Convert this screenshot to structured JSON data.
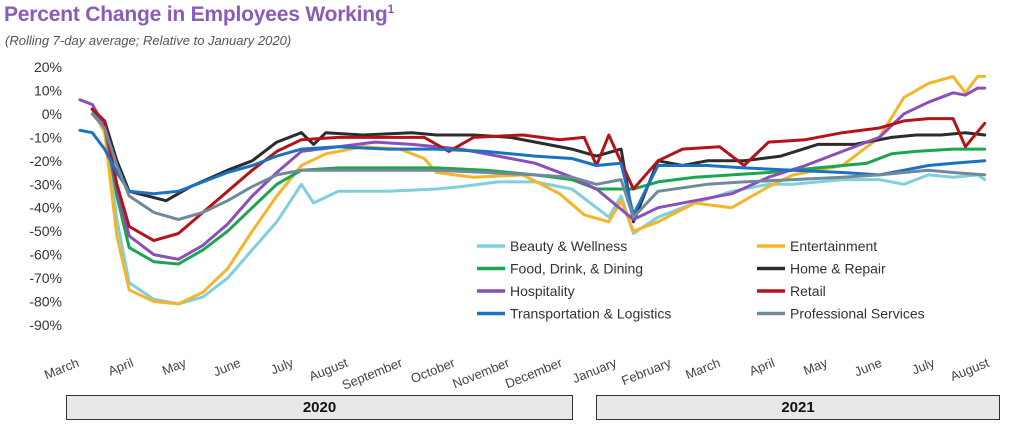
{
  "title": "Percent Change in Employees Working",
  "title_footnote": "1",
  "subtitle": "(Rolling 7-day average; Relative to January 2020)",
  "years": [
    "2020",
    "2021"
  ],
  "chart_data": {
    "type": "line",
    "title": "Percent Change in Employees Working",
    "subtitle": "(Rolling 7-day average; Relative to January 2020)",
    "xlabel": "",
    "ylabel": "",
    "ylim": [
      -90,
      20
    ],
    "yticks": [
      "20%",
      "10%",
      "0%",
      "-10%",
      "-20%",
      "-30%",
      "-40%",
      "-50%",
      "-60%",
      "-70%",
      "-80%",
      "-90%"
    ],
    "x_start": "2020-03-01",
    "x_end": "2021-08-01",
    "month_labels": [
      "March",
      "April",
      "May",
      "June",
      "July",
      "August",
      "September",
      "October",
      "November",
      "December",
      "January",
      "February",
      "March",
      "April",
      "May",
      "June",
      "July",
      "August"
    ],
    "legend_position": "lower-right inside plot",
    "grid": false,
    "series": [
      {
        "name": "Beauty & Wellness",
        "color": "#7fcfdc",
        "points": [
          [
            "2020-03-08",
            2
          ],
          [
            "2020-03-15",
            -5
          ],
          [
            "2020-03-22",
            -45
          ],
          [
            "2020-03-29",
            -72
          ],
          [
            "2020-04-12",
            -79
          ],
          [
            "2020-04-26",
            -81
          ],
          [
            "2020-05-10",
            -78
          ],
          [
            "2020-05-24",
            -70
          ],
          [
            "2020-06-07",
            -58
          ],
          [
            "2020-06-21",
            -46
          ],
          [
            "2020-07-05",
            -30
          ],
          [
            "2020-07-12",
            -38
          ],
          [
            "2020-07-26",
            -33
          ],
          [
            "2020-08-23",
            -33
          ],
          [
            "2020-09-20",
            -32
          ],
          [
            "2020-10-04",
            -31
          ],
          [
            "2020-10-25",
            -29
          ],
          [
            "2020-11-15",
            -29
          ],
          [
            "2020-12-06",
            -32
          ],
          [
            "2020-12-20",
            -40
          ],
          [
            "2020-12-27",
            -44
          ],
          [
            "2021-01-03",
            -35
          ],
          [
            "2021-01-10",
            -51
          ],
          [
            "2021-01-24",
            -44
          ],
          [
            "2021-02-14",
            -38
          ],
          [
            "2021-03-07",
            -33
          ],
          [
            "2021-03-28",
            -30
          ],
          [
            "2021-04-11",
            -30
          ],
          [
            "2021-05-09",
            -28
          ],
          [
            "2021-05-30",
            -28
          ],
          [
            "2021-06-13",
            -30
          ],
          [
            "2021-06-27",
            -26
          ],
          [
            "2021-07-11",
            -27
          ],
          [
            "2021-07-25",
            -26
          ],
          [
            "2021-07-29",
            -28
          ]
        ]
      },
      {
        "name": "Entertainment",
        "color": "#f5b52a",
        "points": [
          [
            "2020-03-08",
            2
          ],
          [
            "2020-03-15",
            -8
          ],
          [
            "2020-03-22",
            -52
          ],
          [
            "2020-03-29",
            -75
          ],
          [
            "2020-04-12",
            -80
          ],
          [
            "2020-04-26",
            -81
          ],
          [
            "2020-05-10",
            -76
          ],
          [
            "2020-05-24",
            -66
          ],
          [
            "2020-06-07",
            -50
          ],
          [
            "2020-06-21",
            -35
          ],
          [
            "2020-07-05",
            -22
          ],
          [
            "2020-07-19",
            -17
          ],
          [
            "2020-08-09",
            -14
          ],
          [
            "2020-08-30",
            -15
          ],
          [
            "2020-09-13",
            -19
          ],
          [
            "2020-09-20",
            -25
          ],
          [
            "2020-10-11",
            -27
          ],
          [
            "2020-11-08",
            -26
          ],
          [
            "2020-11-29",
            -34
          ],
          [
            "2020-12-13",
            -43
          ],
          [
            "2020-12-27",
            -46
          ],
          [
            "2021-01-03",
            -37
          ],
          [
            "2021-01-10",
            -50
          ],
          [
            "2021-01-24",
            -46
          ],
          [
            "2021-02-14",
            -38
          ],
          [
            "2021-03-07",
            -40
          ],
          [
            "2021-03-28",
            -31
          ],
          [
            "2021-04-11",
            -26
          ],
          [
            "2021-05-09",
            -22
          ],
          [
            "2021-05-30",
            -10
          ],
          [
            "2021-06-13",
            7
          ],
          [
            "2021-06-27",
            13
          ],
          [
            "2021-07-11",
            16
          ],
          [
            "2021-07-18",
            9
          ],
          [
            "2021-07-25",
            16
          ],
          [
            "2021-07-29",
            16
          ]
        ]
      },
      {
        "name": "Food, Drink, & Dining",
        "color": "#1aa64e",
        "points": [
          [
            "2020-03-08",
            2
          ],
          [
            "2020-03-15",
            -5
          ],
          [
            "2020-03-22",
            -35
          ],
          [
            "2020-03-29",
            -57
          ],
          [
            "2020-04-12",
            -63
          ],
          [
            "2020-04-26",
            -64
          ],
          [
            "2020-05-10",
            -58
          ],
          [
            "2020-05-24",
            -50
          ],
          [
            "2020-06-07",
            -40
          ],
          [
            "2020-06-21",
            -30
          ],
          [
            "2020-07-05",
            -24
          ],
          [
            "2020-07-26",
            -23
          ],
          [
            "2020-08-23",
            -23
          ],
          [
            "2020-09-20",
            -23
          ],
          [
            "2020-10-18",
            -24
          ],
          [
            "2020-11-15",
            -26
          ],
          [
            "2020-12-06",
            -28
          ],
          [
            "2020-12-20",
            -32
          ],
          [
            "2021-01-10",
            -32
          ],
          [
            "2021-01-24",
            -29
          ],
          [
            "2021-02-14",
            -27
          ],
          [
            "2021-03-07",
            -26
          ],
          [
            "2021-03-28",
            -25
          ],
          [
            "2021-04-25",
            -23
          ],
          [
            "2021-05-23",
            -21
          ],
          [
            "2021-06-06",
            -17
          ],
          [
            "2021-06-20",
            -16
          ],
          [
            "2021-07-11",
            -15
          ],
          [
            "2021-07-29",
            -15
          ]
        ]
      },
      {
        "name": "Home & Repair",
        "color": "#2c2c2c",
        "points": [
          [
            "2020-03-08",
            2
          ],
          [
            "2020-03-15",
            -3
          ],
          [
            "2020-03-22",
            -20
          ],
          [
            "2020-03-29",
            -33
          ],
          [
            "2020-04-19",
            -37
          ],
          [
            "2020-05-03",
            -31
          ],
          [
            "2020-05-24",
            -24
          ],
          [
            "2020-06-07",
            -20
          ],
          [
            "2020-06-21",
            -12
          ],
          [
            "2020-07-05",
            -8
          ],
          [
            "2020-07-12",
            -13
          ],
          [
            "2020-07-19",
            -8
          ],
          [
            "2020-08-09",
            -9
          ],
          [
            "2020-09-06",
            -8
          ],
          [
            "2020-09-20",
            -9
          ],
          [
            "2020-10-11",
            -9
          ],
          [
            "2020-11-01",
            -10
          ],
          [
            "2020-11-22",
            -13
          ],
          [
            "2020-12-06",
            -15
          ],
          [
            "2020-12-20",
            -18
          ],
          [
            "2021-01-03",
            -15
          ],
          [
            "2021-01-10",
            -46
          ],
          [
            "2021-01-24",
            -20
          ],
          [
            "2021-02-07",
            -22
          ],
          [
            "2021-02-21",
            -20
          ],
          [
            "2021-03-14",
            -20
          ],
          [
            "2021-04-04",
            -18
          ],
          [
            "2021-04-25",
            -13
          ],
          [
            "2021-05-16",
            -13
          ],
          [
            "2021-06-06",
            -10
          ],
          [
            "2021-06-20",
            -9
          ],
          [
            "2021-07-04",
            -9
          ],
          [
            "2021-07-18",
            -8
          ],
          [
            "2021-07-29",
            -9
          ]
        ]
      },
      {
        "name": "Hospitality",
        "color": "#8a4fb8",
        "points": [
          [
            "2020-03-01",
            6
          ],
          [
            "2020-03-08",
            4
          ],
          [
            "2020-03-15",
            -5
          ],
          [
            "2020-03-22",
            -32
          ],
          [
            "2020-03-29",
            -52
          ],
          [
            "2020-04-12",
            -60
          ],
          [
            "2020-04-26",
            -62
          ],
          [
            "2020-05-10",
            -56
          ],
          [
            "2020-05-24",
            -47
          ],
          [
            "2020-06-07",
            -35
          ],
          [
            "2020-06-21",
            -25
          ],
          [
            "2020-07-05",
            -16
          ],
          [
            "2020-07-26",
            -14
          ],
          [
            "2020-08-16",
            -12
          ],
          [
            "2020-09-06",
            -13
          ],
          [
            "2020-10-04",
            -15
          ],
          [
            "2020-10-25",
            -18
          ],
          [
            "2020-11-15",
            -21
          ],
          [
            "2020-12-06",
            -27
          ],
          [
            "2020-12-20",
            -32
          ],
          [
            "2021-01-10",
            -45
          ],
          [
            "2021-01-24",
            -40
          ],
          [
            "2021-02-14",
            -37
          ],
          [
            "2021-03-07",
            -34
          ],
          [
            "2021-03-28",
            -27
          ],
          [
            "2021-04-18",
            -22
          ],
          [
            "2021-05-09",
            -16
          ],
          [
            "2021-05-30",
            -10
          ],
          [
            "2021-06-13",
            0
          ],
          [
            "2021-06-27",
            5
          ],
          [
            "2021-07-11",
            9
          ],
          [
            "2021-07-18",
            8
          ],
          [
            "2021-07-25",
            11
          ],
          [
            "2021-07-29",
            11
          ]
        ]
      },
      {
        "name": "Retail",
        "color": "#b3141a",
        "points": [
          [
            "2020-03-08",
            2
          ],
          [
            "2020-03-15",
            -3
          ],
          [
            "2020-03-22",
            -30
          ],
          [
            "2020-03-29",
            -48
          ],
          [
            "2020-04-12",
            -54
          ],
          [
            "2020-04-26",
            -51
          ],
          [
            "2020-05-10",
            -42
          ],
          [
            "2020-05-24",
            -33
          ],
          [
            "2020-06-07",
            -24
          ],
          [
            "2020-06-21",
            -16
          ],
          [
            "2020-07-05",
            -11
          ],
          [
            "2020-07-26",
            -10
          ],
          [
            "2020-08-23",
            -10
          ],
          [
            "2020-09-13",
            -10
          ],
          [
            "2020-09-27",
            -16
          ],
          [
            "2020-10-11",
            -10
          ],
          [
            "2020-11-08",
            -9
          ],
          [
            "2020-11-29",
            -11
          ],
          [
            "2020-12-13",
            -10
          ],
          [
            "2020-12-20",
            -22
          ],
          [
            "2020-12-27",
            -9
          ],
          [
            "2021-01-10",
            -32
          ],
          [
            "2021-01-24",
            -20
          ],
          [
            "2021-02-07",
            -15
          ],
          [
            "2021-02-28",
            -14
          ],
          [
            "2021-03-14",
            -22
          ],
          [
            "2021-03-28",
            -12
          ],
          [
            "2021-04-18",
            -11
          ],
          [
            "2021-05-09",
            -8
          ],
          [
            "2021-05-30",
            -6
          ],
          [
            "2021-06-13",
            -3
          ],
          [
            "2021-06-27",
            -2
          ],
          [
            "2021-07-11",
            -2
          ],
          [
            "2021-07-18",
            -14
          ],
          [
            "2021-07-29",
            -4
          ]
        ]
      },
      {
        "name": "Transportation & Logistics",
        "color": "#1a73c2",
        "points": [
          [
            "2020-03-01",
            -7
          ],
          [
            "2020-03-08",
            -8
          ],
          [
            "2020-03-15",
            -15
          ],
          [
            "2020-03-22",
            -25
          ],
          [
            "2020-03-29",
            -33
          ],
          [
            "2020-04-12",
            -34
          ],
          [
            "2020-04-26",
            -33
          ],
          [
            "2020-05-10",
            -29
          ],
          [
            "2020-05-24",
            -25
          ],
          [
            "2020-06-07",
            -22
          ],
          [
            "2020-06-21",
            -18
          ],
          [
            "2020-07-05",
            -15
          ],
          [
            "2020-07-26",
            -14
          ],
          [
            "2020-08-23",
            -15
          ],
          [
            "2020-09-20",
            -15
          ],
          [
            "2020-10-18",
            -16
          ],
          [
            "2020-11-15",
            -18
          ],
          [
            "2020-12-06",
            -19
          ],
          [
            "2020-12-20",
            -22
          ],
          [
            "2021-01-03",
            -21
          ],
          [
            "2021-01-10",
            -43
          ],
          [
            "2021-01-24",
            -22
          ],
          [
            "2021-02-21",
            -22
          ],
          [
            "2021-03-14",
            -23
          ],
          [
            "2021-04-11",
            -24
          ],
          [
            "2021-05-09",
            -25
          ],
          [
            "2021-05-30",
            -26
          ],
          [
            "2021-06-13",
            -24
          ],
          [
            "2021-06-27",
            -22
          ],
          [
            "2021-07-11",
            -21
          ],
          [
            "2021-07-29",
            -20
          ]
        ]
      },
      {
        "name": "Professional Services",
        "color": "#708a99",
        "points": [
          [
            "2020-03-08",
            0
          ],
          [
            "2020-03-15",
            -6
          ],
          [
            "2020-03-22",
            -22
          ],
          [
            "2020-03-29",
            -35
          ],
          [
            "2020-04-12",
            -42
          ],
          [
            "2020-04-26",
            -45
          ],
          [
            "2020-05-10",
            -42
          ],
          [
            "2020-05-24",
            -37
          ],
          [
            "2020-06-07",
            -31
          ],
          [
            "2020-06-21",
            -26
          ],
          [
            "2020-07-05",
            -24
          ],
          [
            "2020-07-26",
            -24
          ],
          [
            "2020-08-23",
            -24
          ],
          [
            "2020-09-20",
            -24
          ],
          [
            "2020-10-18",
            -25
          ],
          [
            "2020-11-15",
            -26
          ],
          [
            "2020-12-06",
            -27
          ],
          [
            "2020-12-20",
            -30
          ],
          [
            "2021-01-03",
            -28
          ],
          [
            "2021-01-10",
            -44
          ],
          [
            "2021-01-24",
            -33
          ],
          [
            "2021-02-21",
            -30
          ],
          [
            "2021-03-14",
            -29
          ],
          [
            "2021-04-11",
            -28
          ],
          [
            "2021-05-09",
            -27
          ],
          [
            "2021-05-30",
            -26
          ],
          [
            "2021-06-13",
            -25
          ],
          [
            "2021-06-27",
            -24
          ],
          [
            "2021-07-11",
            -25
          ],
          [
            "2021-07-29",
            -26
          ]
        ]
      }
    ]
  }
}
